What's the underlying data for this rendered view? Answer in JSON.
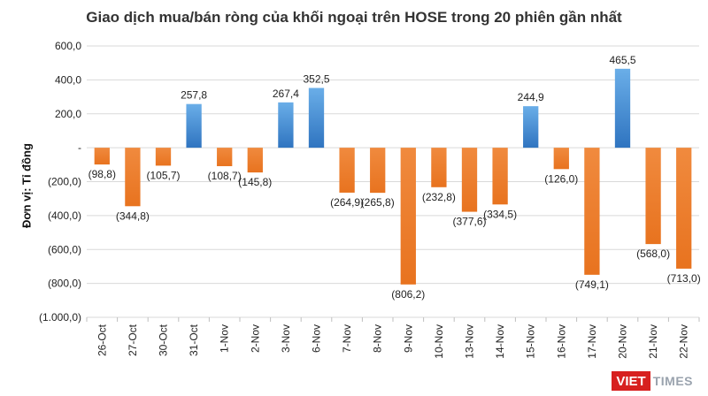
{
  "chart_data": {
    "type": "bar",
    "title": "Giao dịch mua/bán ròng của khối ngoại trên HOSE trong 20 phiên gần nhất",
    "ylabel": "Đơn vị: Tỉ đồng",
    "xlabel": "",
    "ylim": [
      -1000,
      600
    ],
    "yticks": [
      600,
      400,
      200,
      0,
      -200,
      -400,
      -600,
      -800,
      -1000
    ],
    "ytick_labels": [
      "600,0",
      "400,0",
      "200,0",
      "-",
      "(200,0)",
      "(400,0)",
      "(600,0)",
      "(800,0)",
      "(1.000,0)"
    ],
    "categories": [
      "26-Oct",
      "27-Oct",
      "30-Oct",
      "31-Oct",
      "1-Nov",
      "2-Nov",
      "3-Nov",
      "6-Nov",
      "7-Nov",
      "8-Nov",
      "9-Nov",
      "10-Nov",
      "13-Nov",
      "14-Nov",
      "15-Nov",
      "16-Nov",
      "17-Nov",
      "20-Nov",
      "21-Nov",
      "22-Nov"
    ],
    "values": [
      -98.8,
      -344.8,
      -105.7,
      257.8,
      -108.7,
      -145.8,
      267.4,
      352.5,
      -264.9,
      -265.8,
      -806.2,
      -232.8,
      -377.6,
      -334.5,
      244.9,
      -126.0,
      -749.1,
      465.5,
      -568.0,
      -713.0
    ],
    "data_labels": [
      "(98,8)",
      "(344,8)",
      "(105,7)",
      "257,8",
      "(108,7)",
      "(145,8)",
      "267,4",
      "352,5",
      "(264,9)",
      "(265,8)",
      "(806,2)",
      "(232,8)",
      "(377,6)",
      "(334,5)",
      "244,9",
      "(126,0)",
      "(749,1)",
      "465,5",
      "(568,0)",
      "(713,0)"
    ],
    "colors": {
      "positive": "#4a8fd4",
      "negative": "#ed7d31",
      "grid": "#d9d9d9"
    },
    "grid": true,
    "legend": "none"
  },
  "logo": {
    "left": "VIET",
    "right": "TIMES"
  }
}
